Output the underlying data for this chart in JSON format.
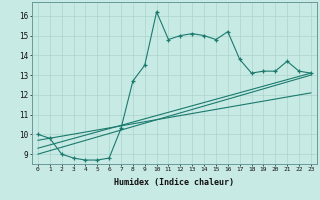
{
  "xlabel": "Humidex (Indice chaleur)",
  "ylabel": "",
  "bg_color": "#c8eae4",
  "grid_color": "#aad4cc",
  "line_color": "#1a7a6e",
  "xlim": [
    -0.5,
    23.5
  ],
  "ylim": [
    8.5,
    16.7
  ],
  "yticks": [
    9,
    10,
    11,
    12,
    13,
    14,
    15,
    16
  ],
  "xticks": [
    0,
    1,
    2,
    3,
    4,
    5,
    6,
    7,
    8,
    9,
    10,
    11,
    12,
    13,
    14,
    15,
    16,
    17,
    18,
    19,
    20,
    21,
    22,
    23
  ],
  "line1_x": [
    0,
    1,
    2,
    3,
    4,
    5,
    6,
    7,
    8,
    9,
    10,
    11,
    12,
    13,
    14,
    15,
    16,
    17,
    18,
    19,
    20,
    21,
    22,
    23
  ],
  "line1_y": [
    10.0,
    9.8,
    9.0,
    8.8,
    8.7,
    8.7,
    8.8,
    10.3,
    12.7,
    13.5,
    16.2,
    14.8,
    15.0,
    15.1,
    15.0,
    14.8,
    15.2,
    13.8,
    13.1,
    13.2,
    13.2,
    13.7,
    13.2,
    13.1
  ],
  "line2_x": [
    0,
    23
  ],
  "line2_y": [
    9.0,
    13.0
  ],
  "line3_x": [
    0,
    23
  ],
  "line3_y": [
    9.3,
    13.1
  ],
  "line4_x": [
    0,
    23
  ],
  "line4_y": [
    9.7,
    12.1
  ]
}
